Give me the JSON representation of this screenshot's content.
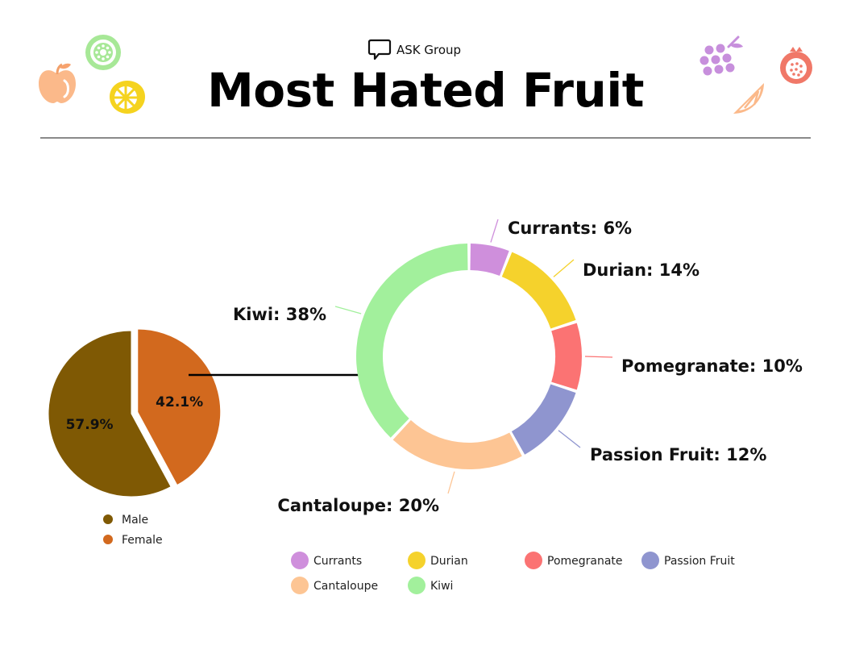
{
  "header": {
    "brand": "ASK Group",
    "title": "Most Hated Fruit"
  },
  "colors": {
    "male": "#7f5904",
    "female": "#d2691e",
    "currants": "#cf8fdc",
    "durian": "#f5d22c",
    "pomegranate": "#fb7373",
    "passion_fruit": "#8f95cf",
    "cantaloupe": "#fdc594",
    "kiwi": "#a2f09c"
  },
  "chart_data": [
    {
      "type": "pie",
      "categories": [
        "Male",
        "Female"
      ],
      "values": [
        57.9,
        42.1
      ],
      "labels": [
        "57.9%",
        "42.1%"
      ],
      "legend": [
        "Male",
        "Female"
      ],
      "exploded": "Female"
    },
    {
      "type": "pie",
      "donut": true,
      "categories": [
        "Currants",
        "Durian",
        "Pomegranate",
        "Passion Fruit",
        "Cantaloupe",
        "Kiwi"
      ],
      "values": [
        6,
        14,
        10,
        12,
        20,
        38
      ],
      "labels": [
        "Currants: 6%",
        "Durian: 14%",
        "Pomegranate: 10%",
        "Passion Fruit: 12%",
        "Cantaloupe: 20%",
        "Kiwi: 38%"
      ],
      "legend": [
        "Currants",
        "Durian",
        "Pomegranate",
        "Passion Fruit",
        "Cantaloupe",
        "Kiwi"
      ]
    }
  ],
  "decorations": {
    "left_icons": [
      "apple-icon",
      "kiwi-slice-icon",
      "lemon-slice-icon"
    ],
    "right_icons": [
      "grapes-icon",
      "pomegranate-icon",
      "orange-slice-icon"
    ]
  }
}
